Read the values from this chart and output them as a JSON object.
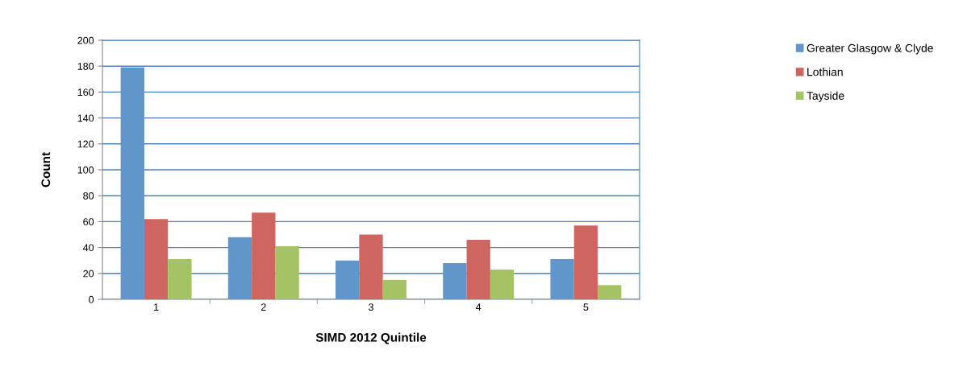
{
  "chart_data": {
    "type": "bar",
    "xlabel": "SIMD 2012 Quintile",
    "ylabel": "Count",
    "categories": [
      "1",
      "2",
      "3",
      "4",
      "5"
    ],
    "series": [
      {
        "name": "Greater Glasgow & Clyde",
        "color": "#6096c9",
        "values": [
          179,
          48,
          30,
          28,
          31
        ]
      },
      {
        "name": "Lothian",
        "color": "#cf6560",
        "values": [
          62,
          67,
          50,
          46,
          57
        ]
      },
      {
        "name": "Tayside",
        "color": "#a4c463",
        "values": [
          31,
          41,
          15,
          23,
          11
        ]
      }
    ],
    "ylim": [
      0,
      200
    ],
    "yticks": [
      0,
      20,
      40,
      60,
      80,
      100,
      120,
      140,
      160,
      180,
      200
    ],
    "grid": "y",
    "legend": "top right"
  }
}
